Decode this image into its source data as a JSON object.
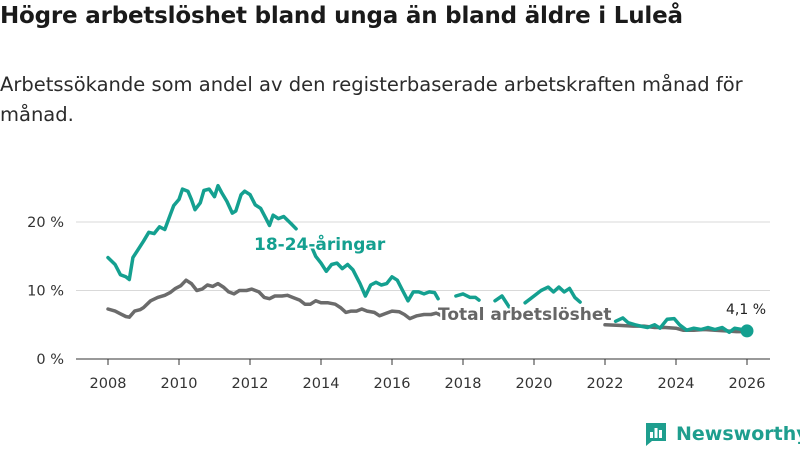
{
  "title": "Högre arbetslöshet bland unga än bland äldre i Luleå",
  "subtitle": "Arbetssökande som andel av den registerbaserade arbetskraften månad för månad.",
  "brand": {
    "name": "Newsworthy",
    "color": "#1e9e8e",
    "icon": "newsworthy-logo-icon"
  },
  "chart_data": {
    "type": "line",
    "x_unit": "year",
    "x_range": [
      2007.5,
      2026.6
    ],
    "xticks": [
      2008,
      2010,
      2012,
      2014,
      2016,
      2018,
      2020,
      2022,
      2024,
      2026
    ],
    "xtick_labels": [
      "2008",
      "2010",
      "2012",
      "2014",
      "2016",
      "2018",
      "2020",
      "2022",
      "2024",
      "2026"
    ],
    "ylim": [
      0,
      27
    ],
    "yticks": [
      0,
      10,
      20
    ],
    "ytick_labels": [
      "0 %",
      "10 %",
      "20 %"
    ],
    "grid": true,
    "series": [
      {
        "name": "18-24-åringar",
        "label": "18-24-åringar",
        "color": "#14a090",
        "points": [
          [
            2008.0,
            14.8
          ],
          [
            2008.2,
            13.8
          ],
          [
            2008.35,
            12.3
          ],
          [
            2008.5,
            12.0
          ],
          [
            2008.6,
            11.6
          ],
          [
            2008.7,
            14.8
          ],
          [
            2008.85,
            16.0
          ],
          [
            2009.0,
            17.2
          ],
          [
            2009.15,
            18.5
          ],
          [
            2009.3,
            18.3
          ],
          [
            2009.45,
            19.3
          ],
          [
            2009.6,
            18.9
          ],
          [
            2009.75,
            21.0
          ],
          [
            2009.85,
            22.4
          ],
          [
            2010.0,
            23.3
          ],
          [
            2010.1,
            24.8
          ],
          [
            2010.25,
            24.5
          ],
          [
            2010.35,
            23.3
          ],
          [
            2010.45,
            21.8
          ],
          [
            2010.6,
            22.8
          ],
          [
            2010.7,
            24.6
          ],
          [
            2010.85,
            24.8
          ],
          [
            2011.0,
            23.7
          ],
          [
            2011.1,
            25.3
          ],
          [
            2011.2,
            24.3
          ],
          [
            2011.35,
            23.0
          ],
          [
            2011.5,
            21.3
          ],
          [
            2011.6,
            21.6
          ],
          [
            2011.75,
            24.0
          ],
          [
            2011.85,
            24.5
          ],
          [
            2012.0,
            24.0
          ],
          [
            2012.15,
            22.5
          ],
          [
            2012.3,
            22.0
          ],
          [
            2012.45,
            20.5
          ],
          [
            2012.55,
            19.5
          ],
          [
            2012.65,
            21.0
          ],
          [
            2012.8,
            20.5
          ],
          [
            2012.95,
            20.8
          ],
          [
            2013.15,
            19.8
          ],
          [
            2013.3,
            19.0
          ]
        ],
        "segment2": [
          [
            2013.7,
            16.8
          ],
          [
            2013.85,
            15.0
          ],
          [
            2014.0,
            14.0
          ],
          [
            2014.15,
            12.8
          ],
          [
            2014.3,
            13.8
          ],
          [
            2014.45,
            14.0
          ],
          [
            2014.6,
            13.2
          ],
          [
            2014.75,
            13.8
          ],
          [
            2014.9,
            13.0
          ],
          [
            2015.0,
            12.0
          ],
          [
            2015.1,
            11.0
          ],
          [
            2015.25,
            9.2
          ],
          [
            2015.4,
            10.8
          ],
          [
            2015.55,
            11.2
          ],
          [
            2015.7,
            10.8
          ],
          [
            2015.85,
            11.0
          ],
          [
            2016.0,
            12.0
          ],
          [
            2016.15,
            11.5
          ],
          [
            2016.3,
            10.0
          ],
          [
            2016.45,
            8.5
          ],
          [
            2016.6,
            9.8
          ],
          [
            2016.75,
            9.8
          ],
          [
            2016.9,
            9.5
          ],
          [
            2017.05,
            9.8
          ],
          [
            2017.2,
            9.7
          ],
          [
            2017.3,
            8.8
          ]
        ],
        "segment3": [
          [
            2017.8,
            9.2
          ],
          [
            2018.0,
            9.5
          ],
          [
            2018.2,
            9.0
          ],
          [
            2018.35,
            9.0
          ],
          [
            2018.45,
            8.6
          ]
        ],
        "segment4": [
          [
            2018.9,
            8.5
          ],
          [
            2019.1,
            9.2
          ],
          [
            2019.3,
            7.6
          ]
        ],
        "segment5": [
          [
            2019.75,
            8.2
          ],
          [
            2020.0,
            9.2
          ],
          [
            2020.2,
            10.0
          ],
          [
            2020.4,
            10.5
          ],
          [
            2020.55,
            9.8
          ],
          [
            2020.7,
            10.5
          ],
          [
            2020.85,
            9.8
          ],
          [
            2021.0,
            10.3
          ],
          [
            2021.15,
            9.0
          ],
          [
            2021.3,
            8.3
          ]
        ],
        "segment6": [
          [
            2022.3,
            5.5
          ],
          [
            2022.5,
            6.0
          ],
          [
            2022.65,
            5.3
          ],
          [
            2022.85,
            5.0
          ],
          [
            2023.0,
            4.8
          ],
          [
            2023.2,
            4.6
          ],
          [
            2023.4,
            5.0
          ],
          [
            2023.55,
            4.5
          ],
          [
            2023.75,
            5.8
          ],
          [
            2023.95,
            5.9
          ],
          [
            2024.1,
            5.0
          ],
          [
            2024.3,
            4.2
          ],
          [
            2024.5,
            4.5
          ],
          [
            2024.7,
            4.3
          ],
          [
            2024.9,
            4.6
          ],
          [
            2025.1,
            4.3
          ],
          [
            2025.3,
            4.6
          ],
          [
            2025.5,
            3.9
          ],
          [
            2025.65,
            4.5
          ],
          [
            2025.85,
            4.3
          ],
          [
            2026.0,
            4.1
          ]
        ]
      },
      {
        "name": "Total arbetslöshet",
        "label": "Total arbetslöshet",
        "color": "#6b6b6b",
        "points": [
          [
            2008.0,
            7.3
          ],
          [
            2008.2,
            7.0
          ],
          [
            2008.35,
            6.6
          ],
          [
            2008.5,
            6.2
          ],
          [
            2008.6,
            6.1
          ],
          [
            2008.75,
            7.0
          ],
          [
            2008.9,
            7.2
          ],
          [
            2009.0,
            7.5
          ],
          [
            2009.2,
            8.5
          ],
          [
            2009.4,
            9.0
          ],
          [
            2009.6,
            9.3
          ],
          [
            2009.75,
            9.7
          ],
          [
            2009.9,
            10.3
          ],
          [
            2010.05,
            10.7
          ],
          [
            2010.2,
            11.5
          ],
          [
            2010.35,
            11.0
          ],
          [
            2010.5,
            10.0
          ],
          [
            2010.65,
            10.2
          ],
          [
            2010.8,
            10.8
          ],
          [
            2010.95,
            10.6
          ],
          [
            2011.1,
            11.0
          ],
          [
            2011.25,
            10.5
          ],
          [
            2011.4,
            9.8
          ],
          [
            2011.55,
            9.5
          ],
          [
            2011.7,
            10.0
          ],
          [
            2011.9,
            10.0
          ],
          [
            2012.05,
            10.2
          ],
          [
            2012.25,
            9.8
          ],
          [
            2012.4,
            9.0
          ],
          [
            2012.55,
            8.8
          ],
          [
            2012.7,
            9.2
          ],
          [
            2012.9,
            9.2
          ],
          [
            2013.05,
            9.3
          ],
          [
            2013.2,
            9.0
          ],
          [
            2013.4,
            8.6
          ],
          [
            2013.55,
            8.0
          ],
          [
            2013.7,
            8.0
          ],
          [
            2013.85,
            8.5
          ],
          [
            2014.0,
            8.2
          ],
          [
            2014.2,
            8.2
          ],
          [
            2014.4,
            8.0
          ],
          [
            2014.55,
            7.5
          ],
          [
            2014.7,
            6.8
          ],
          [
            2014.85,
            7.0
          ],
          [
            2015.0,
            7.0
          ],
          [
            2015.15,
            7.3
          ],
          [
            2015.3,
            7.0
          ],
          [
            2015.5,
            6.8
          ],
          [
            2015.65,
            6.3
          ],
          [
            2015.8,
            6.6
          ],
          [
            2016.0,
            7.0
          ],
          [
            2016.2,
            6.9
          ],
          [
            2016.35,
            6.5
          ],
          [
            2016.5,
            5.9
          ],
          [
            2016.7,
            6.3
          ],
          [
            2016.9,
            6.5
          ],
          [
            2017.1,
            6.5
          ],
          [
            2017.25,
            6.7
          ],
          [
            2017.4,
            6.3
          ]
        ],
        "segment2": [
          [
            2022.0,
            5.0
          ],
          [
            2022.4,
            4.9
          ],
          [
            2022.8,
            4.8
          ],
          [
            2023.1,
            4.8
          ],
          [
            2023.4,
            4.6
          ],
          [
            2023.7,
            4.6
          ],
          [
            2024.0,
            4.5
          ],
          [
            2024.2,
            4.2
          ],
          [
            2024.5,
            4.2
          ],
          [
            2024.8,
            4.3
          ],
          [
            2025.1,
            4.2
          ],
          [
            2025.4,
            4.1
          ],
          [
            2025.7,
            4.0
          ],
          [
            2026.0,
            4.0
          ]
        ]
      }
    ],
    "annotations": [
      {
        "text": "4,1 %",
        "x": 2026.0,
        "y": 4.1
      }
    ]
  }
}
